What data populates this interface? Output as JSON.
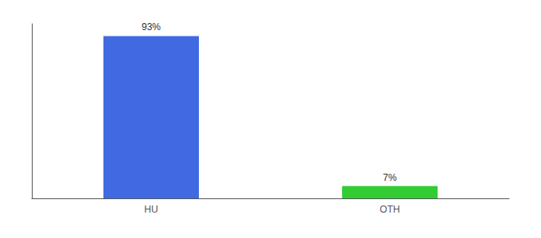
{
  "chart_data": {
    "type": "bar",
    "categories": [
      "HU",
      "OTH"
    ],
    "values": [
      93,
      7
    ],
    "value_labels": [
      "93%",
      "7%"
    ],
    "colors": [
      "#4169e1",
      "#33cc33"
    ],
    "ylim": [
      0,
      100
    ],
    "data_labels": true,
    "tick_labels": "x",
    "grid": false
  }
}
